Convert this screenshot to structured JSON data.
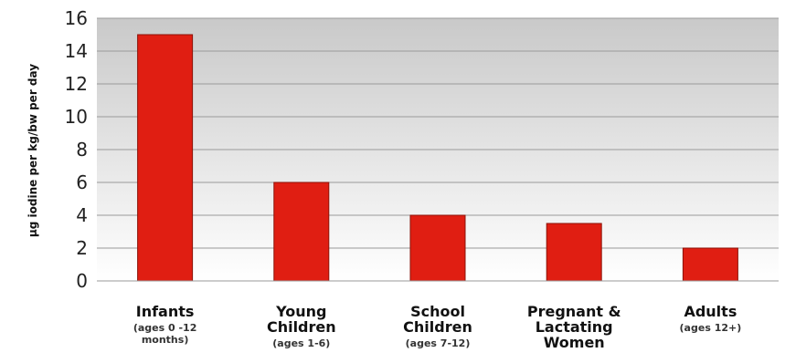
{
  "chart_data": {
    "type": "bar",
    "ylabel": "µg iodine per kg/bw per day",
    "ylim": [
      0,
      16
    ],
    "yticks": [
      0,
      2,
      4,
      6,
      8,
      10,
      12,
      14,
      16
    ],
    "grid": true,
    "bar_color": "#e01e12",
    "categories": [
      {
        "main": [
          "Infants"
        ],
        "sub": [
          "(ages 0 -12",
          "months)"
        ]
      },
      {
        "main": [
          "Young",
          "Children"
        ],
        "sub": [
          "(ages 1-6)"
        ]
      },
      {
        "main": [
          "School",
          "Children"
        ],
        "sub": [
          "(ages 7-12)"
        ]
      },
      {
        "main": [
          "Pregnant &",
          "Lactating",
          "Women"
        ],
        "sub": []
      },
      {
        "main": [
          "Adults"
        ],
        "sub": [
          "(ages 12+)"
        ]
      }
    ],
    "values": [
      15,
      6,
      4,
      3.5,
      2
    ]
  }
}
